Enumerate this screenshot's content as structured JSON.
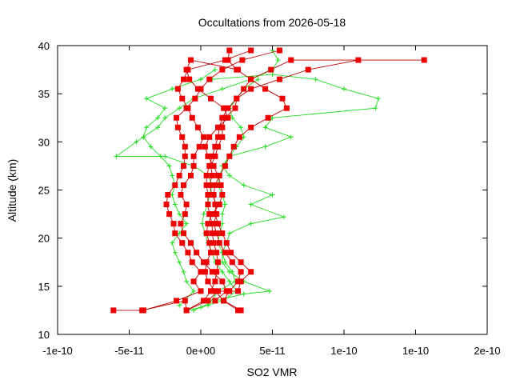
{
  "chart_data": {
    "type": "line",
    "title": "Occultations from 2026-05-18",
    "xlabel": "SO2 VMR",
    "ylabel": "Altitude (km)",
    "xlim": [
      -1e-10,
      2e-10
    ],
    "ylim": [
      10,
      40
    ],
    "x_ticks": [
      -1e-10,
      -5e-11,
      0,
      5e-11,
      1e-10,
      1.5e-10,
      2e-10
    ],
    "x_tick_labels": [
      "-1e-10",
      "-5e-11",
      "0e+00",
      "5e-11",
      "1e-10",
      "1e-10",
      "2e-10"
    ],
    "y_ticks": [
      10,
      15,
      20,
      25,
      30,
      35,
      40
    ],
    "y_tick_labels": [
      "10",
      "15",
      "20",
      "25",
      "30",
      "35",
      "40"
    ],
    "grid": false,
    "legend": "none",
    "series": [
      {
        "color": "#ff0000",
        "marker": "square",
        "points": [
          [
            -6.1e-11,
            12.5
          ],
          [
            -4.1e-11,
            12.5
          ],
          [
            -1.1e-11,
            13.5
          ],
          [
            -1e-11,
            12.5
          ],
          [
            5e-12,
            13.5
          ],
          [
            1.2e-11,
            14.5
          ],
          [
            2.6e-11,
            14.5
          ],
          [
            2.8e-11,
            15.5
          ],
          [
            3.5e-11,
            16.5
          ],
          [
            2.8e-11,
            17.5
          ],
          [
            2.1e-11,
            18.5
          ],
          [
            1.8e-11,
            19.5
          ],
          [
            1.5e-11,
            20.5
          ],
          [
            1.2e-11,
            21.5
          ],
          [
            1e-11,
            22.5
          ],
          [
            1.1e-11,
            23.5
          ],
          [
            8e-12,
            24.5
          ],
          [
            6e-12,
            25.5
          ],
          [
            8e-12,
            26.5
          ],
          [
            7e-12,
            27.5
          ],
          [
            1e-11,
            28.5
          ],
          [
            1.2e-11,
            29.5
          ],
          [
            1.5e-11,
            30.5
          ],
          [
            1.5e-11,
            31.5
          ],
          [
            1.7e-11,
            32.5
          ],
          [
            2.4e-11,
            33.5
          ],
          [
            2.5e-11,
            34.5
          ],
          [
            3e-11,
            35.5
          ],
          [
            3.5e-11,
            36.5
          ],
          [
            4.9e-11,
            37.5
          ],
          [
            6.3e-11,
            38.5
          ],
          [
            1.56e-10,
            38.5
          ]
        ]
      },
      {
        "color": "#ff0000",
        "marker": "square",
        "points": [
          [
            -4e-11,
            12.5
          ],
          [
            -1.7e-11,
            13.5
          ],
          [
            0,
            14.5
          ],
          [
            -5e-12,
            15.5
          ],
          [
            0,
            16.5
          ],
          [
            -6e-12,
            17.5
          ],
          [
            -9e-12,
            18.5
          ],
          [
            -1.3e-11,
            19.5
          ],
          [
            -1.8e-11,
            20.5
          ],
          [
            -1.9e-11,
            21.5
          ],
          [
            -2.2e-11,
            22.5
          ],
          [
            -2.4e-11,
            23.5
          ],
          [
            -2.3e-11,
            24.5
          ],
          [
            -1.8e-11,
            25.5
          ],
          [
            -1.5e-11,
            26.5
          ],
          [
            -1.2e-11,
            27.5
          ],
          [
            -1.1e-11,
            28.5
          ],
          [
            -1.1e-11,
            29.5
          ],
          [
            -1.3e-11,
            30.5
          ],
          [
            -1.6e-11,
            31.5
          ],
          [
            -1.7e-11,
            32.5
          ],
          [
            -1e-11,
            33.5
          ],
          [
            -4e-12,
            34.5
          ],
          [
            0,
            35.5
          ],
          [
            6e-12,
            36.5
          ],
          [
            1.5e-11,
            37.5
          ],
          [
            2.9e-11,
            38.5
          ],
          [
            5.5e-11,
            39.5
          ]
        ]
      },
      {
        "color": "#ff0000",
        "marker": "square",
        "points": [
          [
            -1e-11,
            12.5
          ],
          [
            2e-12,
            13.5
          ],
          [
            7e-12,
            14.5
          ],
          [
            1e-11,
            15.5
          ],
          [
            1.1e-11,
            16.5
          ],
          [
            1.2e-11,
            17.5
          ],
          [
            1.1e-11,
            18.5
          ],
          [
            9e-12,
            19.5
          ],
          [
            8e-12,
            20.5
          ],
          [
            8e-12,
            21.5
          ],
          [
            6e-12,
            22.5
          ],
          [
            5e-12,
            23.5
          ],
          [
            5e-12,
            24.5
          ],
          [
            4e-12,
            25.5
          ],
          [
            4e-12,
            26.5
          ],
          [
            6e-12,
            27.5
          ],
          [
            8e-12,
            28.5
          ],
          [
            1e-11,
            29.5
          ],
          [
            1.2e-11,
            30.5
          ],
          [
            1.3e-11,
            31.5
          ],
          [
            1.5e-11,
            32.5
          ],
          [
            1.9e-11,
            33.5
          ],
          [
            2.5e-11,
            34.5
          ],
          [
            3.5e-11,
            35.5
          ],
          [
            5.5e-11,
            36.5
          ],
          [
            7.5e-11,
            37.5
          ],
          [
            1.1e-10,
            38.5
          ]
        ]
      },
      {
        "color": "#ff0000",
        "marker": "square",
        "points": [
          [
            2.6e-11,
            12.5
          ],
          [
            1.6e-11,
            13.5
          ],
          [
            2e-11,
            14.5
          ],
          [
            2.6e-11,
            15.5
          ],
          [
            2.8e-11,
            16.5
          ],
          [
            2.2e-11,
            17.5
          ],
          [
            1.7e-11,
            18.5
          ],
          [
            1.3e-11,
            19.5
          ],
          [
            1.1e-11,
            20.5
          ],
          [
            9e-12,
            21.5
          ],
          [
            1.1e-11,
            22.5
          ],
          [
            1e-11,
            23.5
          ],
          [
            9e-12,
            24.5
          ],
          [
            1e-11,
            25.5
          ],
          [
            1.3e-11,
            26.5
          ],
          [
            1.7e-11,
            27.5
          ],
          [
            2e-11,
            28.5
          ],
          [
            2.3e-11,
            29.5
          ],
          [
            2.7e-11,
            30.5
          ],
          [
            3.5e-11,
            31.5
          ],
          [
            4.7e-11,
            32.5
          ],
          [
            6e-11,
            33.5
          ],
          [
            5.7e-11,
            34.5
          ],
          [
            4.5e-11,
            35.5
          ],
          [
            3.5e-11,
            36.5
          ],
          [
            2.5e-11,
            37.5
          ],
          [
            1.9e-11,
            38.5
          ],
          [
            2e-11,
            39.5
          ]
        ]
      },
      {
        "color": "#ff0000",
        "marker": "square",
        "points": [
          [
            2.8e-11,
            12.5
          ],
          [
            1.6e-11,
            13.5
          ],
          [
            1e-11,
            14.5
          ],
          [
            5e-12,
            15.5
          ],
          [
            3e-12,
            16.5
          ],
          [
            4e-12,
            17.5
          ],
          [
            7e-12,
            18.5
          ],
          [
            6e-12,
            19.5
          ],
          [
            4e-12,
            20.5
          ],
          [
            5e-12,
            21.5
          ],
          [
            8e-12,
            22.5
          ],
          [
            1.3e-11,
            23.5
          ],
          [
            1.5e-11,
            24.5
          ],
          [
            1.4e-11,
            25.5
          ],
          [
            1.2e-11,
            26.5
          ],
          [
            9e-12,
            27.5
          ],
          [
            5e-12,
            28.5
          ],
          [
            3e-12,
            29.5
          ],
          [
            6e-12,
            30.5
          ],
          [
            1.2e-11,
            31.5
          ],
          [
            1.9e-11,
            32.5
          ],
          [
            1.6e-11,
            33.5
          ],
          [
            7e-12,
            34.5
          ],
          [
            -2e-12,
            35.5
          ],
          [
            -8e-12,
            36.5
          ],
          [
            -1e-11,
            37.5
          ],
          [
            -7e-12,
            38.5
          ],
          [
            2.6e-11,
            37.5
          ]
        ]
      },
      {
        "color": "#ff0000",
        "marker": "square",
        "points": [
          [
            1e-11,
            13.5
          ],
          [
            1.8e-11,
            14.5
          ],
          [
            1.5e-11,
            15.5
          ],
          [
            8e-12,
            16.5
          ],
          [
            2e-12,
            17.5
          ],
          [
            -3e-12,
            18.5
          ],
          [
            -7e-12,
            19.5
          ],
          [
            -1.2e-11,
            20.5
          ],
          [
            -1.4e-11,
            21.5
          ],
          [
            -1.1e-11,
            22.5
          ],
          [
            -1e-11,
            23.5
          ],
          [
            -1.4e-11,
            24.5
          ],
          [
            -1.2e-11,
            25.5
          ],
          [
            -7e-12,
            26.5
          ],
          [
            -5e-12,
            27.5
          ],
          [
            -5e-12,
            28.5
          ],
          [
            -1e-12,
            29.5
          ],
          [
            2e-12,
            30.5
          ],
          [
            -2e-12,
            31.5
          ],
          [
            -6e-12,
            32.5
          ],
          [
            -9e-12,
            33.5
          ],
          [
            -1.3e-11,
            34.5
          ],
          [
            -1.6e-11,
            35.5
          ],
          [
            -1.2e-11,
            36.5
          ],
          [
            -9e-12,
            37.5
          ],
          [
            1.7e-11,
            38.5
          ],
          [
            3.5e-11,
            39.5
          ]
        ]
      },
      {
        "color": "#00ff00",
        "marker": "plus",
        "points": [
          [
            -1e-11,
            12.5
          ],
          [
            0,
            12.8
          ],
          [
            1.5e-11,
            13.5
          ],
          [
            2.5e-11,
            14.5
          ],
          [
            2e-11,
            15.5
          ],
          [
            1.5e-11,
            16.5
          ],
          [
            1e-11,
            17.5
          ],
          [
            8e-12,
            18.5
          ],
          [
            5e-12,
            19.5
          ],
          [
            3e-12,
            20.5
          ],
          [
            1e-12,
            21.5
          ],
          [
            2e-12,
            22.5
          ],
          [
            5e-12,
            23.5
          ],
          [
            6e-12,
            24.5
          ],
          [
            8e-12,
            25.5
          ],
          [
            5e-12,
            26.5
          ],
          [
            -5e-12,
            27.5
          ],
          [
            -2.5e-11,
            28.5
          ],
          [
            -5.9e-11,
            28.5
          ],
          [
            -4.5e-11,
            30
          ],
          [
            -3e-11,
            31.5
          ],
          [
            -2.5e-11,
            32.5
          ],
          [
            -1.5e-11,
            33.5
          ],
          [
            -5e-12,
            34.5
          ],
          [
            1.5e-11,
            35.5
          ],
          [
            3.5e-11,
            36.5
          ],
          [
            5e-11,
            37.5
          ],
          [
            5.4e-11,
            38.5
          ],
          [
            5e-11,
            39.5
          ]
        ]
      },
      {
        "color": "#00ff00",
        "marker": "plus",
        "points": [
          [
            -5e-12,
            12.5
          ],
          [
            1e-11,
            13.5
          ],
          [
            3e-11,
            14.2
          ],
          [
            4.8e-11,
            14.5
          ],
          [
            3e-11,
            15.5
          ],
          [
            2e-11,
            16.5
          ],
          [
            1.5e-11,
            17.5
          ],
          [
            1.5e-11,
            18.5
          ],
          [
            1.8e-11,
            19.5
          ],
          [
            2e-11,
            20.5
          ],
          [
            3.5e-11,
            21.5
          ],
          [
            5.8e-11,
            22.2
          ],
          [
            3.5e-11,
            23.5
          ],
          [
            5e-11,
            24.5
          ],
          [
            3e-11,
            25.5
          ],
          [
            2e-11,
            26.5
          ],
          [
            1.5e-11,
            27.5
          ],
          [
            2e-11,
            28.5
          ],
          [
            4.5e-11,
            29.5
          ],
          [
            6.3e-11,
            30.5
          ],
          [
            4.5e-11,
            31.5
          ],
          [
            5e-11,
            32.5
          ],
          [
            1.22e-10,
            33.5
          ],
          [
            1.24e-10,
            34.5
          ],
          [
            1e-10,
            35.5
          ],
          [
            8e-11,
            36.5
          ],
          [
            5e-11,
            37
          ],
          [
            8e-12,
            36.5
          ]
        ]
      },
      {
        "color": "#00ff00",
        "marker": "plus",
        "points": [
          [
            -1.5e-11,
            13
          ],
          [
            -5e-12,
            14.5
          ],
          [
            -1e-11,
            15.5
          ],
          [
            -1.2e-11,
            16.5
          ],
          [
            -1.5e-11,
            17.5
          ],
          [
            -1.8e-11,
            18.5
          ],
          [
            -2e-11,
            19.5
          ],
          [
            -1.5e-11,
            20.5
          ],
          [
            -1e-11,
            21.5
          ],
          [
            -1.5e-11,
            22.5
          ],
          [
            -1.8e-11,
            23.5
          ],
          [
            -2e-11,
            24.5
          ],
          [
            -1.8e-11,
            25.5
          ],
          [
            -2e-11,
            26.5
          ],
          [
            -2.2e-11,
            27.5
          ],
          [
            -2.8e-11,
            28.5
          ],
          [
            -3.5e-11,
            29.5
          ],
          [
            -4e-11,
            30.5
          ],
          [
            -3.8e-11,
            31.5
          ],
          [
            -3e-11,
            32.5
          ],
          [
            -2.5e-11,
            33.5
          ],
          [
            -3.8e-11,
            34.5
          ],
          [
            -2e-11,
            35.5
          ],
          [
            0,
            36.5
          ],
          [
            1e-11,
            37.5
          ]
        ]
      },
      {
        "color": "#00ff00",
        "marker": "plus",
        "points": [
          [
            5e-12,
            13
          ],
          [
            1.2e-11,
            14.5
          ],
          [
            2.4e-11,
            15.5
          ],
          [
            2.2e-11,
            16.5
          ],
          [
            1.7e-11,
            17.5
          ],
          [
            1.5e-11,
            18.5
          ],
          [
            1.2e-11,
            19.5
          ],
          [
            1.3e-11,
            20.5
          ],
          [
            1.5e-11,
            21.5
          ],
          [
            1.5e-11,
            22.5
          ],
          [
            1.7e-11,
            23.5
          ],
          [
            1.5e-11,
            24.5
          ],
          [
            1.2e-11,
            25.5
          ],
          [
            1.3e-11,
            26.5
          ],
          [
            1.6e-11,
            27.5
          ],
          [
            2e-11,
            28.5
          ],
          [
            2.5e-11,
            29.5
          ],
          [
            3e-11,
            30.5
          ],
          [
            2.8e-11,
            31.5
          ],
          [
            2.2e-11,
            32.5
          ],
          [
            2e-11,
            33.5
          ],
          [
            2.5e-11,
            34.5
          ],
          [
            3e-11,
            35.5
          ],
          [
            4e-11,
            36.5
          ]
        ]
      }
    ]
  }
}
